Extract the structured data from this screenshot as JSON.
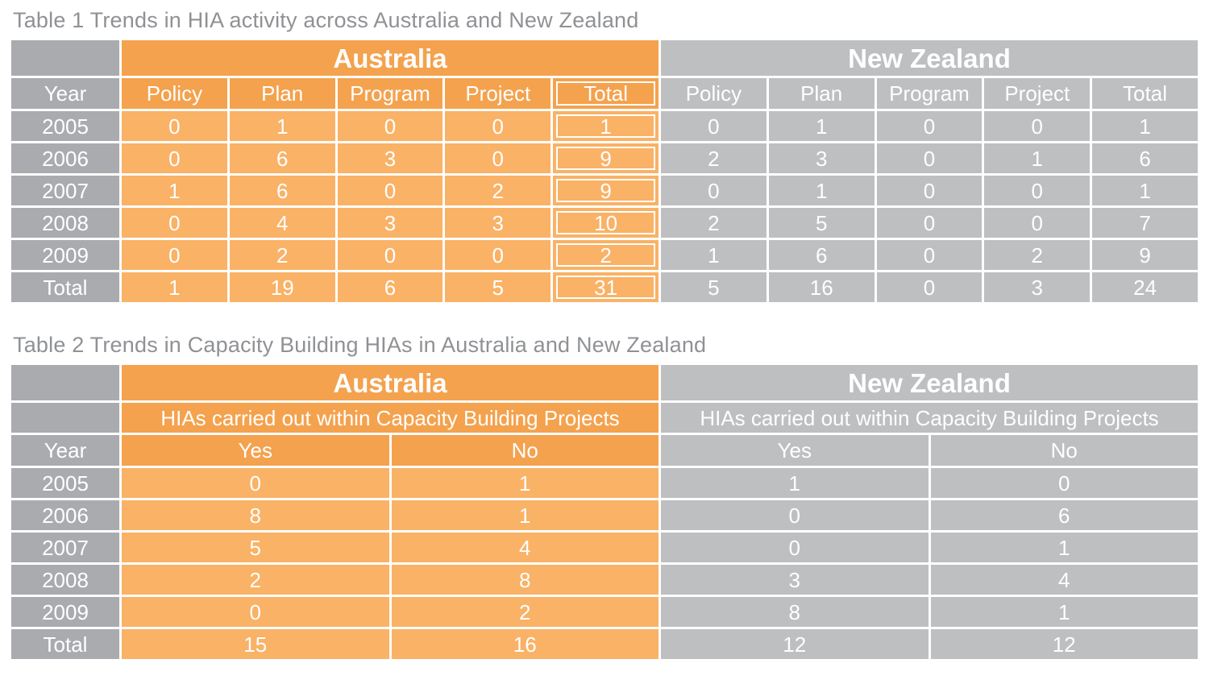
{
  "colors": {
    "header_orange": "#F4A24E",
    "cell_orange": "#F9B266",
    "year_column_gray": "#A9ABAE",
    "nz_gray": "#BDBFC1",
    "title_gray": "#8F9194",
    "cell_text": "#FFFFFF",
    "grid_lines": "#FFFFFF"
  },
  "table1": {
    "title": "Table 1 Trends in HIA activity across Australia and New Zealand",
    "groups": [
      "Australia",
      "New Zealand"
    ],
    "year_header": "Year",
    "columns": [
      "Policy",
      "Plan",
      "Program",
      "Project",
      "Total"
    ],
    "rows": [
      {
        "year": "2005",
        "australia": [
          0,
          1,
          0,
          0,
          1
        ],
        "new_zealand": [
          0,
          1,
          0,
          0,
          1
        ]
      },
      {
        "year": "2006",
        "australia": [
          0,
          6,
          3,
          0,
          9
        ],
        "new_zealand": [
          2,
          3,
          0,
          1,
          6
        ]
      },
      {
        "year": "2007",
        "australia": [
          1,
          6,
          0,
          2,
          9
        ],
        "new_zealand": [
          0,
          1,
          0,
          0,
          1
        ]
      },
      {
        "year": "2008",
        "australia": [
          0,
          4,
          3,
          3,
          10
        ],
        "new_zealand": [
          2,
          5,
          0,
          0,
          7
        ]
      },
      {
        "year": "2009",
        "australia": [
          0,
          2,
          0,
          0,
          2
        ],
        "new_zealand": [
          1,
          6,
          0,
          2,
          9
        ]
      },
      {
        "year": "Total",
        "australia": [
          1,
          19,
          6,
          5,
          31
        ],
        "new_zealand": [
          5,
          16,
          0,
          3,
          24
        ]
      }
    ]
  },
  "table2": {
    "title": "Table 2 Trends in Capacity Building HIAs in Australia and New Zealand",
    "groups": [
      "Australia",
      "New Zealand"
    ],
    "subheader": "HIAs carried out within Capacity Building Projects",
    "year_header": "Year",
    "columns": [
      "Yes",
      "No"
    ],
    "rows": [
      {
        "year": "2005",
        "australia": [
          0,
          1
        ],
        "new_zealand": [
          1,
          0
        ]
      },
      {
        "year": "2006",
        "australia": [
          8,
          1
        ],
        "new_zealand": [
          0,
          6
        ]
      },
      {
        "year": "2007",
        "australia": [
          5,
          4
        ],
        "new_zealand": [
          0,
          1
        ]
      },
      {
        "year": "2008",
        "australia": [
          2,
          8
        ],
        "new_zealand": [
          3,
          4
        ]
      },
      {
        "year": "2009",
        "australia": [
          0,
          2
        ],
        "new_zealand": [
          8,
          1
        ]
      },
      {
        "year": "Total",
        "australia": [
          15,
          16
        ],
        "new_zealand": [
          12,
          12
        ]
      }
    ]
  }
}
